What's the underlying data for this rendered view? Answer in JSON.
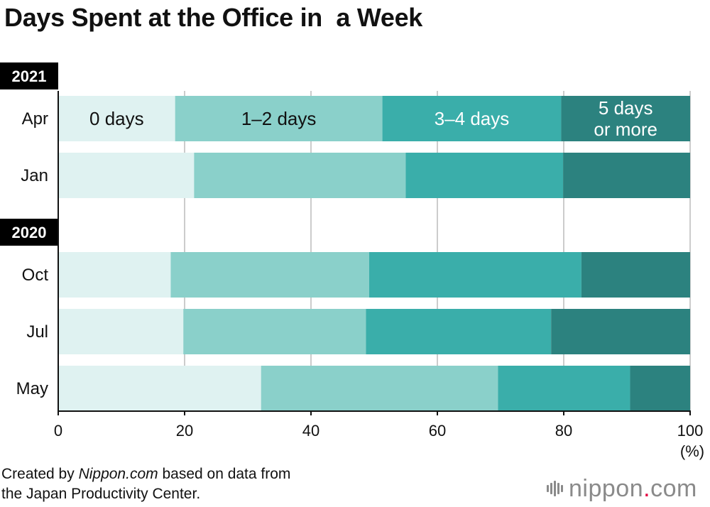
{
  "title": "Days Spent at the Office in  a Week",
  "footer": {
    "prefix": "Created by ",
    "source_name": "Nippon.com",
    "suffix": " based on data from",
    "line2": "the Japan Productivity Center."
  },
  "brand": {
    "name": "nippon",
    "dot": ".",
    "tld": "com"
  },
  "colors": {
    "seg0": "#dff2f1",
    "seg1": "#8ad0ca",
    "seg2": "#3aaeaa",
    "seg3": "#2c827f",
    "grid": "#cccccc",
    "axis": "#111111",
    "year_bg": "#000000"
  },
  "chart_data": {
    "type": "bar",
    "orientation": "horizontal",
    "stacked": true,
    "groups": [
      {
        "year": "2021",
        "categories": [
          "Apr",
          "Jan"
        ]
      },
      {
        "year": "2020",
        "categories": [
          "Oct",
          "Jul",
          "May"
        ]
      }
    ],
    "categories": [
      "Apr",
      "Jan",
      "Oct",
      "Jul",
      "May"
    ],
    "series": [
      {
        "name": "0 days",
        "values": [
          18.5,
          21.5,
          17.8,
          19.8,
          32.1
        ]
      },
      {
        "name": "1–2 days",
        "values": [
          32.8,
          33.5,
          31.4,
          28.9,
          37.5
        ]
      },
      {
        "name": "3–4 days",
        "values": [
          28.3,
          24.9,
          33.6,
          29.3,
          20.9
        ]
      },
      {
        "name": "5 days or more",
        "values": [
          20.4,
          20.1,
          17.2,
          22.0,
          9.5
        ]
      }
    ],
    "inline_labels": [
      "0 days",
      "1–2 days",
      "3–4 days",
      "5 days",
      "or more"
    ],
    "x_ticks": [
      0,
      20,
      40,
      60,
      80,
      100
    ],
    "xlim": [
      0,
      100
    ],
    "x_unit": "(%)",
    "grid": true
  }
}
